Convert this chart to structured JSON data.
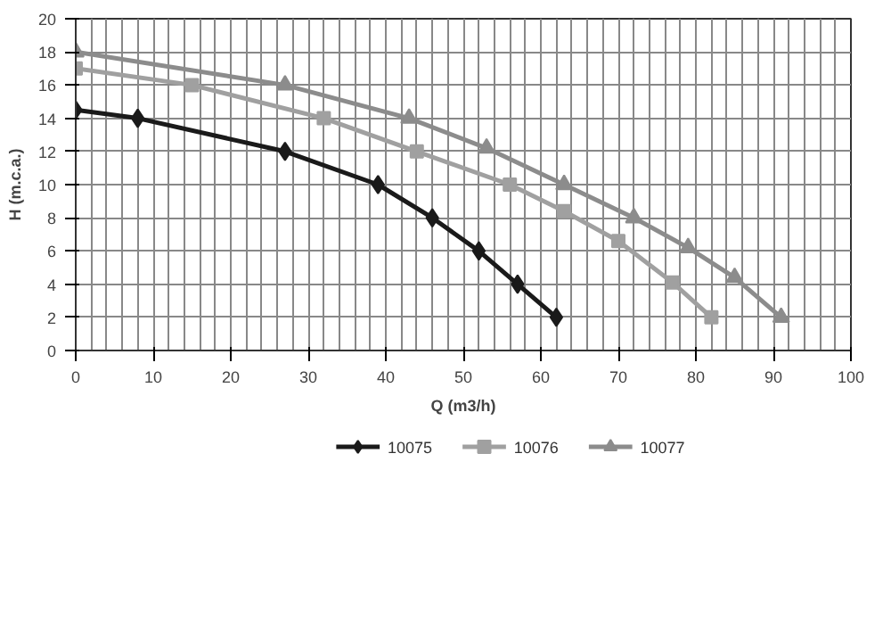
{
  "chart_data": {
    "type": "line",
    "xlabel": "Q (m3/h)",
    "ylabel": "H (m.c.a.)",
    "xlim": [
      0,
      100
    ],
    "xticks": [
      0,
      10,
      20,
      30,
      40,
      50,
      60,
      70,
      80,
      90,
      100
    ],
    "ylim": [
      0,
      20
    ],
    "yticks": [
      0,
      2,
      4,
      6,
      8,
      10,
      12,
      14,
      16,
      18,
      20
    ],
    "grid": true,
    "legend": "bottom",
    "line_style": "solid",
    "series": [
      {
        "name": "10075",
        "color": "#1a1a1a",
        "marker": "diamond",
        "x": [
          0,
          8,
          27,
          39,
          46,
          52,
          57,
          62
        ],
        "values": [
          14.5,
          14,
          12,
          10,
          8,
          6,
          4,
          2
        ]
      },
      {
        "name": "10076",
        "color": "#a0a0a0",
        "marker": "square",
        "x": [
          0,
          15,
          32,
          44,
          56,
          63,
          70,
          77,
          82
        ],
        "values": [
          17,
          16,
          14,
          12,
          10,
          8.4,
          6.6,
          4.1,
          2
        ]
      },
      {
        "name": "10077",
        "color": "#8c8c8c",
        "marker": "triangle",
        "x": [
          0,
          27,
          43,
          53,
          63,
          72,
          79,
          85,
          91
        ],
        "values": [
          18,
          16,
          14,
          12.2,
          10,
          8,
          6.2,
          4.4,
          2
        ]
      }
    ]
  }
}
